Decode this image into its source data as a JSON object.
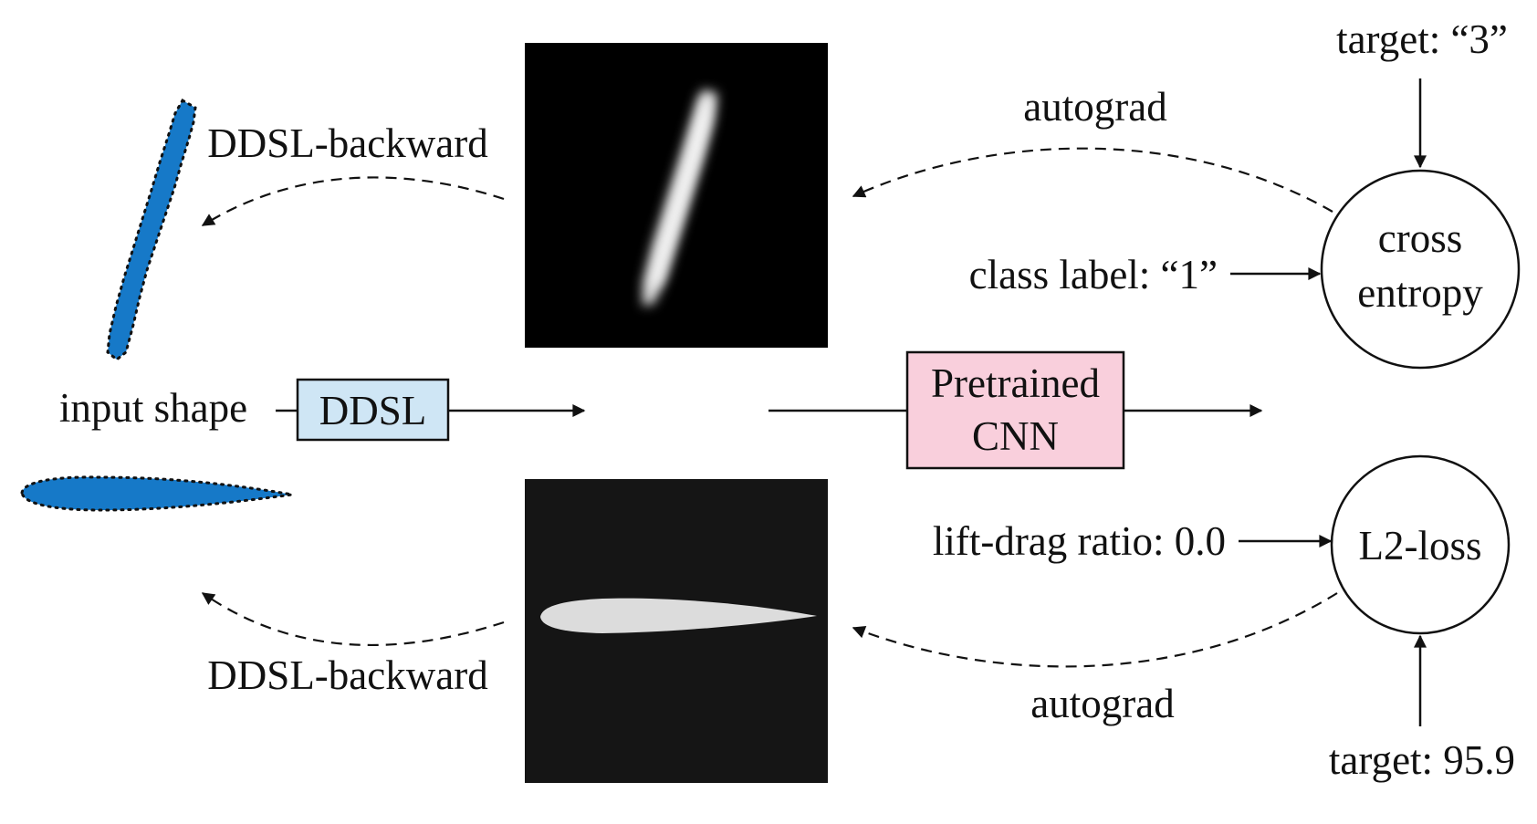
{
  "labels": {
    "input_shape": "input shape",
    "ddsl": "DDSL",
    "pretrained_line1": "Pretrained",
    "pretrained_line2": "CNN",
    "ddsl_backward_top": "DDSL-backward",
    "ddsl_backward_bottom": "DDSL-backward",
    "autograd_top": "autograd",
    "autograd_bottom": "autograd",
    "target_top": "target: “3”",
    "class_label": "class label: “1”",
    "cross_line1": "cross",
    "cross_line2": "entropy",
    "lift_drag": "lift-drag ratio: 0.0",
    "l2_loss": "L2-loss",
    "target_bottom": "target: 95.9"
  },
  "colors": {
    "ddsl_box_fill": "#cfe6f5",
    "cnn_box_fill": "#f9cfdc",
    "shape_fill": "#1679c8",
    "raster_top_bg": "#000000",
    "raster_bottom_bg": "#151515",
    "stroke": "#111111"
  },
  "icons": {
    "digit_shape": "digit-one-polygon-icon",
    "airfoil_shape": "airfoil-polygon-icon"
  }
}
